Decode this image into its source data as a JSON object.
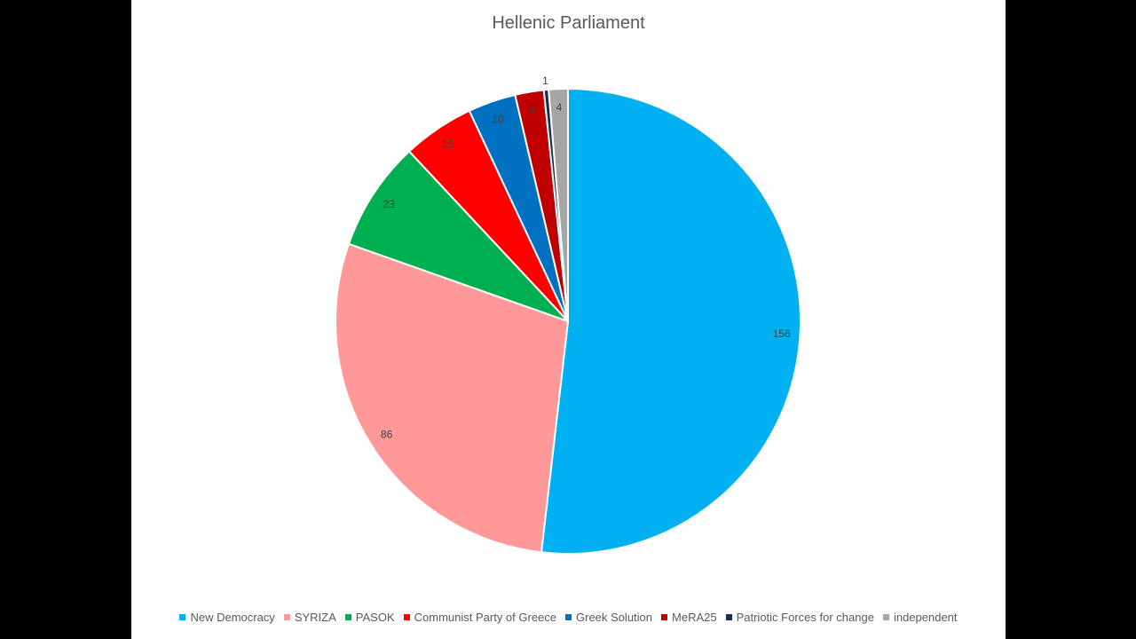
{
  "chart_data": {
    "type": "pie",
    "title": "Hellenic Parliament",
    "legend_position": "bottom",
    "series": [
      {
        "name": "New Democracy",
        "value": 156,
        "color": "#00b0f0"
      },
      {
        "name": "SYRIZA",
        "value": 86,
        "color": "#ff9999"
      },
      {
        "name": "PASOK",
        "value": 23,
        "color": "#00b050"
      },
      {
        "name": "Communist Party of Greece",
        "value": 15,
        "color": "#ff0000"
      },
      {
        "name": "Greek Solution",
        "value": 10,
        "color": "#0070c0"
      },
      {
        "name": "MeRA25",
        "value": 6,
        "color": "#c00000"
      },
      {
        "name": "Patriotic Forces for change",
        "value": 1,
        "color": "#1f2d4d"
      },
      {
        "name": "independent",
        "value": 4,
        "color": "#a6a6a6"
      }
    ]
  }
}
